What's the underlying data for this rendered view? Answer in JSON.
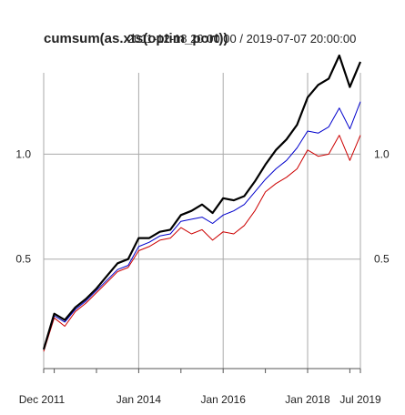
{
  "chart_data": {
    "type": "line",
    "title": "cumsum(as.xts(optim_port))",
    "subtitle": "2011-12-18 20:00:00 / 2019-07-07 20:00:00",
    "xlabel": "",
    "ylabel": "",
    "x_tick_labels": [
      "Dec 2011",
      "Jan 2014",
      "Jan 2016",
      "Jan 2018",
      "Jul 2019"
    ],
    "y_tick_labels": [
      "0.5",
      "1.0"
    ],
    "y_ticks": [
      0.5,
      1.0
    ],
    "ylim": [
      0.0,
      1.47
    ],
    "grid": true,
    "x": [
      "2011-12",
      "2012-03",
      "2012-06",
      "2012-09",
      "2012-12",
      "2013-03",
      "2013-06",
      "2013-09",
      "2013-12",
      "2014-03",
      "2014-06",
      "2014-09",
      "2014-12",
      "2015-03",
      "2015-06",
      "2015-09",
      "2015-12",
      "2016-03",
      "2016-06",
      "2016-09",
      "2016-12",
      "2017-03",
      "2017-06",
      "2017-09",
      "2017-12",
      "2018-03",
      "2018-06",
      "2018-09",
      "2018-12",
      "2019-03",
      "2019-07"
    ],
    "series": [
      {
        "color": "#000000",
        "values": [
          0.07,
          0.24,
          0.21,
          0.27,
          0.31,
          0.36,
          0.42,
          0.48,
          0.5,
          0.6,
          0.6,
          0.63,
          0.64,
          0.71,
          0.73,
          0.76,
          0.72,
          0.79,
          0.78,
          0.8,
          0.87,
          0.95,
          1.02,
          1.07,
          1.14,
          1.27,
          1.33,
          1.36,
          1.47,
          1.32,
          1.44
        ]
      },
      {
        "color": "#0000cc",
        "values": [
          0.07,
          0.23,
          0.2,
          0.26,
          0.3,
          0.35,
          0.4,
          0.45,
          0.47,
          0.56,
          0.58,
          0.61,
          0.62,
          0.68,
          0.69,
          0.7,
          0.67,
          0.71,
          0.73,
          0.76,
          0.82,
          0.88,
          0.93,
          0.97,
          1.03,
          1.11,
          1.1,
          1.13,
          1.22,
          1.12,
          1.25
        ]
      },
      {
        "color": "#cc0000",
        "values": [
          0.06,
          0.22,
          0.18,
          0.25,
          0.29,
          0.34,
          0.39,
          0.44,
          0.46,
          0.54,
          0.56,
          0.59,
          0.6,
          0.65,
          0.62,
          0.64,
          0.59,
          0.63,
          0.62,
          0.66,
          0.73,
          0.82,
          0.86,
          0.89,
          0.93,
          1.02,
          0.99,
          1.0,
          1.09,
          0.97,
          1.09
        ]
      }
    ]
  }
}
